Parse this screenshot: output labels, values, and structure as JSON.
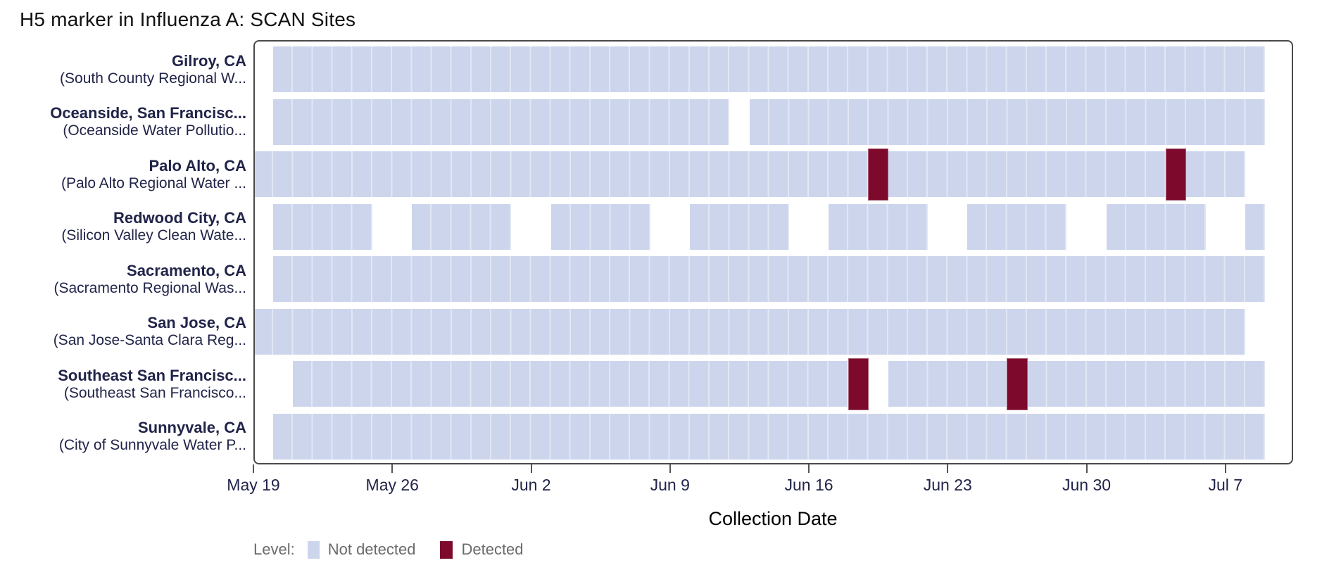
{
  "title": "H5 marker in Influenza A: SCAN Sites",
  "legend": {
    "title": "Level:",
    "items": [
      {
        "label": "Not detected",
        "color": "#ccd5ec"
      },
      {
        "label": "Detected",
        "color": "#7d0a2c"
      }
    ]
  },
  "colors": {
    "not_detected_fill": "#ccd5ec",
    "cell_separator": "#e2e7f4",
    "detected_fill": "#7d0a2c",
    "label_text": "#212449",
    "axis_text": "#212449",
    "legend_text": "#6a6a6a",
    "plot_border": "#4a4a4a"
  },
  "chart_data": {
    "type": "timeline",
    "title": "H5 marker in Influenza A: SCAN Sites",
    "xlabel": "Collection Date",
    "x_start_date": "May 19",
    "x_ticks": [
      {
        "label": "May 19",
        "day": 0
      },
      {
        "label": "May 26",
        "day": 7
      },
      {
        "label": "Jun 2",
        "day": 14
      },
      {
        "label": "Jun 9",
        "day": 21
      },
      {
        "label": "Jun 16",
        "day": 28
      },
      {
        "label": "Jun 23",
        "day": 35
      },
      {
        "label": "Jun 30",
        "day": 42
      },
      {
        "label": "Jul 7",
        "day": 49
      }
    ],
    "levels": [
      "Not detected",
      "Detected"
    ],
    "sites": [
      {
        "city": "Gilroy, CA",
        "facility": "(South County Regional W...",
        "segments": [
          {
            "start_day": 1,
            "end_day": 50,
            "start_date": "May 20",
            "end_date": "Jul 8"
          }
        ],
        "detected": []
      },
      {
        "city": "Oceanside, San Francisc...",
        "facility": "(Oceanside Water Pollutio...",
        "segments": [
          {
            "start_day": 1,
            "end_day": 23,
            "start_date": "May 20",
            "end_date": "Jun 11"
          },
          {
            "start_day": 25,
            "end_day": 50,
            "start_date": "Jun 13",
            "end_date": "Jul 8"
          }
        ],
        "detected": []
      },
      {
        "city": "Palo Alto, CA",
        "facility": "(Palo Alto Regional Water ...",
        "segments": [
          {
            "start_day": 0,
            "end_day": 49,
            "start_date": "May 19",
            "end_date": "Jul 7"
          }
        ],
        "detected": [
          {
            "day": 31,
            "date": "Jun 19"
          },
          {
            "day": 46,
            "date": "Jul 4"
          }
        ]
      },
      {
        "city": "Redwood City, CA",
        "facility": "(Silicon Valley Clean Wate...",
        "segments": [
          {
            "start_day": 1,
            "end_day": 5,
            "start_date": "May 20",
            "end_date": "May 24"
          },
          {
            "start_day": 8,
            "end_day": 12,
            "start_date": "May 27",
            "end_date": "May 31"
          },
          {
            "start_day": 15,
            "end_day": 19,
            "start_date": "Jun 3",
            "end_date": "Jun 7"
          },
          {
            "start_day": 22,
            "end_day": 26,
            "start_date": "Jun 10",
            "end_date": "Jun 14"
          },
          {
            "start_day": 29,
            "end_day": 33,
            "start_date": "Jun 17",
            "end_date": "Jun 21"
          },
          {
            "start_day": 36,
            "end_day": 40,
            "start_date": "Jun 24",
            "end_date": "Jun 28"
          },
          {
            "start_day": 43,
            "end_day": 47,
            "start_date": "Jul 1",
            "end_date": "Jul 5"
          },
          {
            "start_day": 50,
            "end_day": 50,
            "start_date": "Jul 8",
            "end_date": "Jul 8"
          }
        ],
        "detected": []
      },
      {
        "city": "Sacramento, CA",
        "facility": "(Sacramento Regional Was...",
        "segments": [
          {
            "start_day": 1,
            "end_day": 50,
            "start_date": "May 20",
            "end_date": "Jul 8"
          }
        ],
        "detected": []
      },
      {
        "city": "San Jose, CA",
        "facility": "(San Jose-Santa Clara Reg...",
        "segments": [
          {
            "start_day": 0,
            "end_day": 49,
            "start_date": "May 19",
            "end_date": "Jul 7"
          }
        ],
        "detected": []
      },
      {
        "city": "Southeast San Francisc...",
        "facility": "(Southeast San Francisco...",
        "segments": [
          {
            "start_day": 2,
            "end_day": 30,
            "start_date": "May 21",
            "end_date": "Jun 18"
          },
          {
            "start_day": 32,
            "end_day": 50,
            "start_date": "Jun 20",
            "end_date": "Jul 8"
          }
        ],
        "detected": [
          {
            "day": 30,
            "date": "Jun 18"
          },
          {
            "day": 38,
            "date": "Jun 26"
          }
        ]
      },
      {
        "city": "Sunnyvale, CA",
        "facility": "(City of Sunnyvale Water P...",
        "segments": [
          {
            "start_day": 1,
            "end_day": 50,
            "start_date": "May 20",
            "end_date": "Jul 8"
          }
        ],
        "detected": []
      }
    ]
  }
}
